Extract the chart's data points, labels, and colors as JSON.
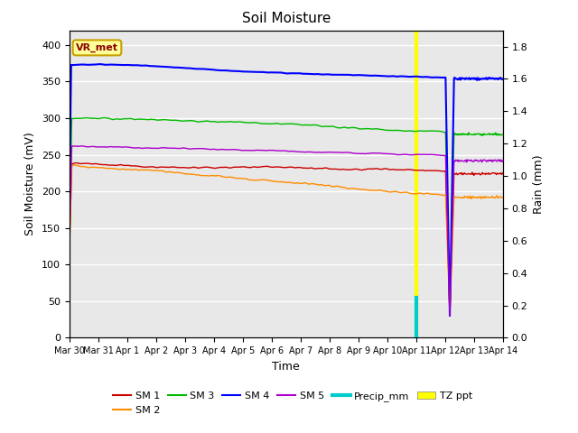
{
  "title": "Soil Moisture",
  "xlabel": "Time",
  "ylabel_left": "Soil Moisture (mV)",
  "ylabel_right": "Rain (mm)",
  "bg_color": "#e8e8e8",
  "annotation_label": "VR_met",
  "annotation_color": "#8b0000",
  "annotation_bg": "#ffff99",
  "annotation_border": "#c8a000",
  "sm1_color": "#cc0000",
  "sm2_color": "#ff8c00",
  "sm3_color": "#00bb00",
  "sm4_color": "#0000ff",
  "sm5_color": "#aa00cc",
  "precip_color": "#00cccc",
  "tzppt_color": "#ffff00",
  "legend_labels": [
    "SM 1",
    "SM 2",
    "SM 3",
    "SM 4",
    "SM 5",
    "Precip_mm",
    "TZ ppt"
  ],
  "legend_colors": [
    "#cc0000",
    "#ff8c00",
    "#00bb00",
    "#0000ff",
    "#aa00cc",
    "#00cccc",
    "#ffff00"
  ],
  "tick_labels": [
    "Mar 30",
    "Mar 31",
    "Apr 1",
    "Apr 2",
    "Apr 3",
    "Apr 4",
    "Apr 5",
    "Apr 6",
    "Apr 7",
    "Apr 8",
    "Apr 9",
    "Apr 10",
    "Apr 11",
    "Apr 12",
    "Apr 13",
    "Apr 14"
  ]
}
